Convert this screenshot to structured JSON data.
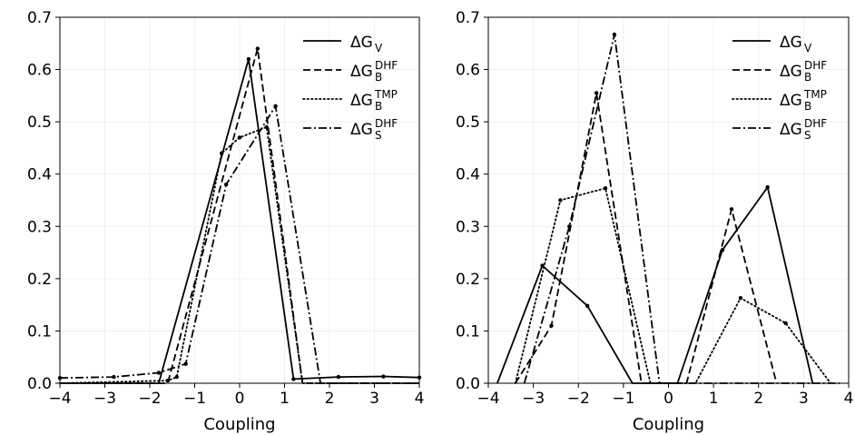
{
  "chart_data": [
    {
      "type": "line",
      "xlabel": "Coupling",
      "ylabel": "",
      "xlim": [
        -4,
        4
      ],
      "ylim": [
        0,
        0.7
      ],
      "xticks": [
        "−4",
        "−3",
        "−2",
        "−1",
        "0",
        "1",
        "2",
        "3",
        "4"
      ],
      "yticks": [
        "0.0",
        "0.1",
        "0.2",
        "0.3",
        "0.4",
        "0.5",
        "0.6",
        "0.7"
      ],
      "grid": true,
      "legend_position": "top-right",
      "series": [
        {
          "name": "ΔG_V",
          "label_main": "ΔG",
          "label_sub": "V",
          "label_sup": "",
          "style": "solid",
          "x": [
            -4.0,
            -1.8,
            0.2,
            1.2,
            2.2,
            3.2,
            4.0
          ],
          "y": [
            0.0,
            0.0,
            0.62,
            0.008,
            0.012,
            0.013,
            0.011
          ]
        },
        {
          "name": "ΔG_B^DHF",
          "label_main": "ΔG",
          "label_sub": "B",
          "label_sup": "DHF",
          "style": "dashed",
          "x": [
            -4.0,
            -1.6,
            0.4,
            1.4,
            1.6,
            4.0
          ],
          "y": [
            0.0,
            0.0,
            0.64,
            0.0,
            0.0,
            0.0
          ]
        },
        {
          "name": "ΔG_B^TMP",
          "label_main": "ΔG",
          "label_sub": "B",
          "label_sup": "TMP",
          "style": "dotted",
          "x": [
            -4.0,
            -1.6,
            -1.4,
            -0.4,
            0.0,
            0.6,
            1.4,
            4.0
          ],
          "y": [
            0.0,
            0.005,
            0.012,
            0.44,
            0.47,
            0.49,
            0.0,
            0.0
          ]
        },
        {
          "name": "ΔG_S^DHF",
          "label_main": "ΔG",
          "label_sub": "S",
          "label_sup": "DHF",
          "style": "dashdot",
          "x": [
            -4.0,
            -2.8,
            -1.8,
            -1.2,
            -0.3,
            0.8,
            1.8,
            4.0
          ],
          "y": [
            0.01,
            0.012,
            0.02,
            0.037,
            0.38,
            0.53,
            0.0,
            0.0
          ]
        }
      ]
    },
    {
      "type": "line",
      "xlabel": "Coupling",
      "ylabel": "",
      "xlim": [
        -4,
        4
      ],
      "ylim": [
        0,
        0.7
      ],
      "xticks": [
        "−4",
        "−3",
        "−2",
        "−1",
        "0",
        "1",
        "2",
        "3",
        "4"
      ],
      "yticks": [
        "0.0",
        "0.1",
        "0.2",
        "0.3",
        "0.4",
        "0.5",
        "0.6",
        "0.7"
      ],
      "grid": true,
      "legend_position": "top-right",
      "series": [
        {
          "name": "ΔG_V",
          "label_main": "ΔG",
          "label_sub": "V",
          "label_sup": "",
          "style": "solid",
          "x": [
            -3.8,
            -2.8,
            -1.8,
            -0.8,
            0.2,
            1.2,
            2.2,
            3.2
          ],
          "y": [
            0.0,
            0.225,
            0.148,
            0.0,
            0.0,
            0.255,
            0.375,
            0.0
          ]
        },
        {
          "name": "ΔG_B^DHF",
          "label_main": "ΔG",
          "label_sub": "B",
          "label_sup": "DHF",
          "style": "dashed",
          "x": [
            -3.4,
            -2.6,
            -1.6,
            -0.6,
            0.4,
            1.4,
            2.4
          ],
          "y": [
            0.0,
            0.11,
            0.555,
            0.0,
            0.0,
            0.333,
            0.0
          ]
        },
        {
          "name": "ΔG_B^TMP",
          "label_main": "ΔG",
          "label_sub": "B",
          "label_sup": "TMP",
          "style": "dotted",
          "x": [
            -3.4,
            -2.4,
            -1.4,
            -0.4,
            0.6,
            1.6,
            2.6,
            3.6
          ],
          "y": [
            0.0,
            0.35,
            0.373,
            0.0,
            0.0,
            0.163,
            0.115,
            0.0
          ]
        },
        {
          "name": "ΔG_S^DHF",
          "label_main": "ΔG",
          "label_sub": "S",
          "label_sup": "DHF",
          "style": "dashdot",
          "x": [
            -3.2,
            -2.2,
            -1.2,
            -0.2,
            0.8,
            1.8,
            2.8,
            3.8
          ],
          "y": [
            0.0,
            0.3,
            0.667,
            0.0,
            0.0,
            0.0,
            0.0,
            0.0
          ]
        }
      ]
    }
  ]
}
